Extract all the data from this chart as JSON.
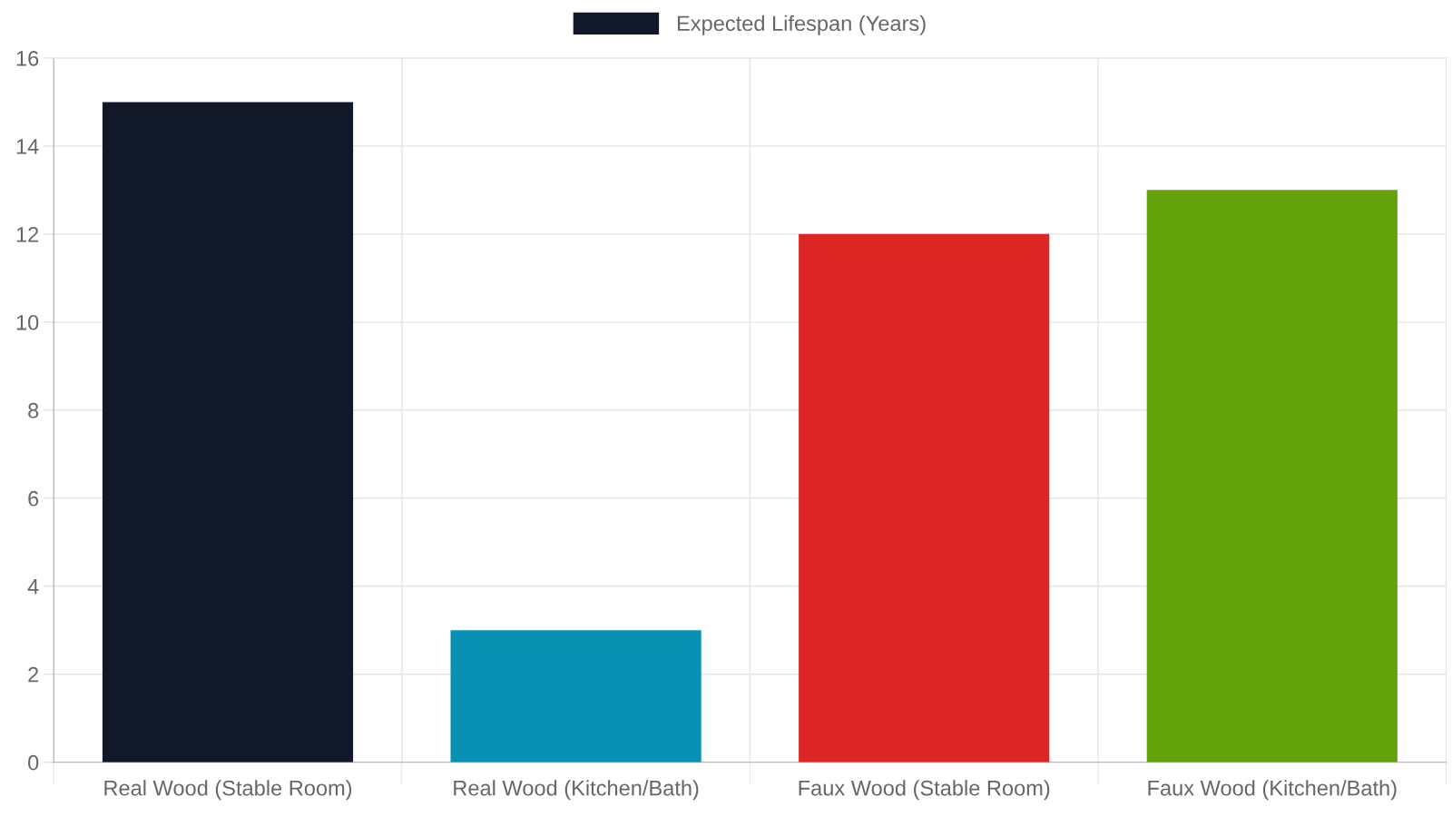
{
  "chart_data": {
    "type": "bar",
    "categories": [
      "Real Wood (Stable Room)",
      "Real Wood (Kitchen/Bath)",
      "Faux Wood (Stable Room)",
      "Faux Wood (Kitchen/Bath)"
    ],
    "series": [
      {
        "name": "Expected Lifespan (Years)",
        "colors": [
          "#111827",
          "#0891b2",
          "#dc2626",
          "#65a30d"
        ],
        "values": [
          15,
          3,
          12,
          13
        ]
      }
    ],
    "ylim": [
      0,
      16
    ],
    "yticks": [
      0,
      2,
      4,
      6,
      8,
      10,
      12,
      14,
      16
    ],
    "grid": true,
    "legend": "top"
  }
}
